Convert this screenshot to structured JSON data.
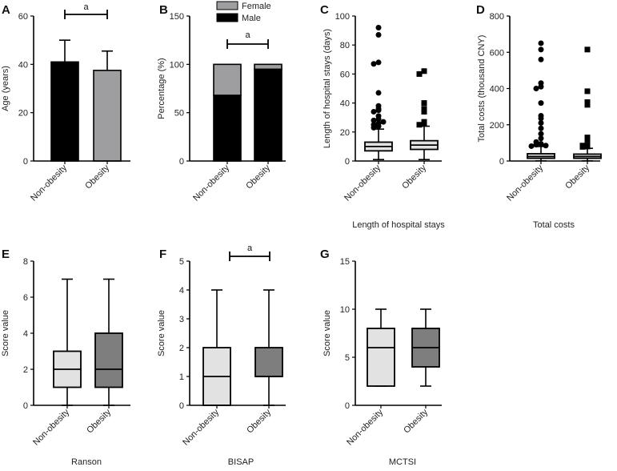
{
  "colors": {
    "black": "#000000",
    "grey": "#9e9ea0",
    "light": "#e2e2e2",
    "dark": "#7e7e7e"
  },
  "chart_data": [
    {
      "panel": "A",
      "type": "bar",
      "categories": [
        "Non-obesity",
        "Obesity"
      ],
      "values": [
        41,
        37.5
      ],
      "errors": [
        9,
        8
      ],
      "ylabel": "Age (years)",
      "ylim": [
        0,
        60
      ],
      "yticks": [
        0,
        20,
        40,
        60
      ],
      "colors": [
        "#000000",
        "#9e9ea0"
      ],
      "significance": "a"
    },
    {
      "panel": "B",
      "type": "bar",
      "stacked": true,
      "categories": [
        "Non-obesity",
        "Obesity"
      ],
      "series": [
        {
          "name": "Male",
          "values": [
            68,
            95
          ],
          "color": "#000000"
        },
        {
          "name": "Female",
          "values": [
            32,
            5
          ],
          "color": "#9e9ea0"
        }
      ],
      "ylabel": "Percentage (%)",
      "ylim": [
        0,
        150
      ],
      "yticks": [
        0,
        50,
        100,
        150
      ],
      "legend_position": "top",
      "significance": "a"
    },
    {
      "panel": "C",
      "type": "box",
      "categories": [
        "Non-obesity",
        "Obesity"
      ],
      "boxes": [
        {
          "whisker_low": 1,
          "q1": 7,
          "median": 10,
          "q3": 13,
          "whisker_high": 22,
          "fill": "#e2e2e2"
        },
        {
          "whisker_low": 1,
          "q1": 8,
          "median": 11,
          "q3": 14,
          "whisker_high": 24,
          "fill": "#e2e2e2"
        }
      ],
      "outliers": [
        {
          "marker": "circle",
          "values": [
            92,
            87,
            68,
            67,
            47,
            38,
            36,
            35,
            34,
            31,
            29,
            28,
            27,
            26,
            25,
            24,
            23
          ]
        },
        {
          "marker": "square",
          "values": [
            62,
            60,
            40,
            36,
            34,
            27,
            26,
            25
          ]
        }
      ],
      "ylabel": "Length of hospital stays (days)",
      "xlabel": "Length of hospital stays",
      "ylim": [
        0,
        100
      ],
      "yticks": [
        0,
        20,
        40,
        60,
        80,
        100
      ]
    },
    {
      "panel": "D",
      "type": "box",
      "categories": [
        "Non-obesity",
        "Obesity"
      ],
      "boxes": [
        {
          "whisker_low": 1,
          "q1": 15,
          "median": 25,
          "q3": 40,
          "whisker_high": 80,
          "fill": "#e2e2e2"
        },
        {
          "whisker_low": 1,
          "q1": 15,
          "median": 25,
          "q3": 38,
          "whisker_high": 70,
          "fill": "#e2e2e2"
        }
      ],
      "outliers": [
        {
          "marker": "circle",
          "values": [
            650,
            615,
            560,
            430,
            410,
            400,
            320,
            250,
            235,
            210,
            180,
            150,
            125,
            105,
            95,
            90,
            85,
            82
          ]
        },
        {
          "marker": "square",
          "values": [
            615,
            385,
            325,
            310,
            130,
            120,
            90,
            85,
            80,
            78
          ]
        }
      ],
      "ylabel": "Total costs (thousand CNY)",
      "xlabel": "Total costs",
      "ylim": [
        0,
        800
      ],
      "yticks": [
        0,
        200,
        400,
        600,
        800
      ]
    },
    {
      "panel": "E",
      "type": "box",
      "categories": [
        "Non-obesity",
        "Obesity"
      ],
      "boxes": [
        {
          "whisker_low": 0,
          "q1": 1,
          "median": 2,
          "q3": 3,
          "whisker_high": 7,
          "fill": "#e2e2e2"
        },
        {
          "whisker_low": 0,
          "q1": 1,
          "median": 2,
          "q3": 4,
          "whisker_high": 7,
          "fill": "#7e7e7e"
        }
      ],
      "ylabel": "Score value",
      "xlabel": "Ranson",
      "ylim": [
        0,
        8
      ],
      "yticks": [
        0,
        2,
        4,
        6,
        8
      ]
    },
    {
      "panel": "F",
      "type": "box",
      "categories": [
        "Non-obesity",
        "Obesity"
      ],
      "boxes": [
        {
          "whisker_low": 0,
          "q1": 0,
          "median": 1,
          "q3": 2,
          "whisker_high": 4,
          "fill": "#e2e2e2"
        },
        {
          "whisker_low": 0,
          "q1": 1,
          "median": 1,
          "q3": 2,
          "whisker_high": 4,
          "fill": "#7e7e7e"
        }
      ],
      "ylabel": "Score value",
      "xlabel": "BISAP",
      "ylim": [
        0,
        5
      ],
      "yticks": [
        0,
        1,
        2,
        3,
        4,
        5
      ],
      "significance": "a"
    },
    {
      "panel": "G",
      "type": "box",
      "categories": [
        "Non-obesity",
        "Obesity"
      ],
      "boxes": [
        {
          "whisker_low": 2,
          "q1": 2,
          "median": 6,
          "q3": 8,
          "whisker_high": 10,
          "fill": "#e2e2e2"
        },
        {
          "whisker_low": 2,
          "q1": 4,
          "median": 6,
          "q3": 8,
          "whisker_high": 10,
          "fill": "#7e7e7e"
        }
      ],
      "ylabel": "Score value",
      "xlabel": "MCTSI",
      "ylim": [
        0,
        15
      ],
      "yticks": [
        0,
        5,
        10,
        15
      ]
    }
  ]
}
